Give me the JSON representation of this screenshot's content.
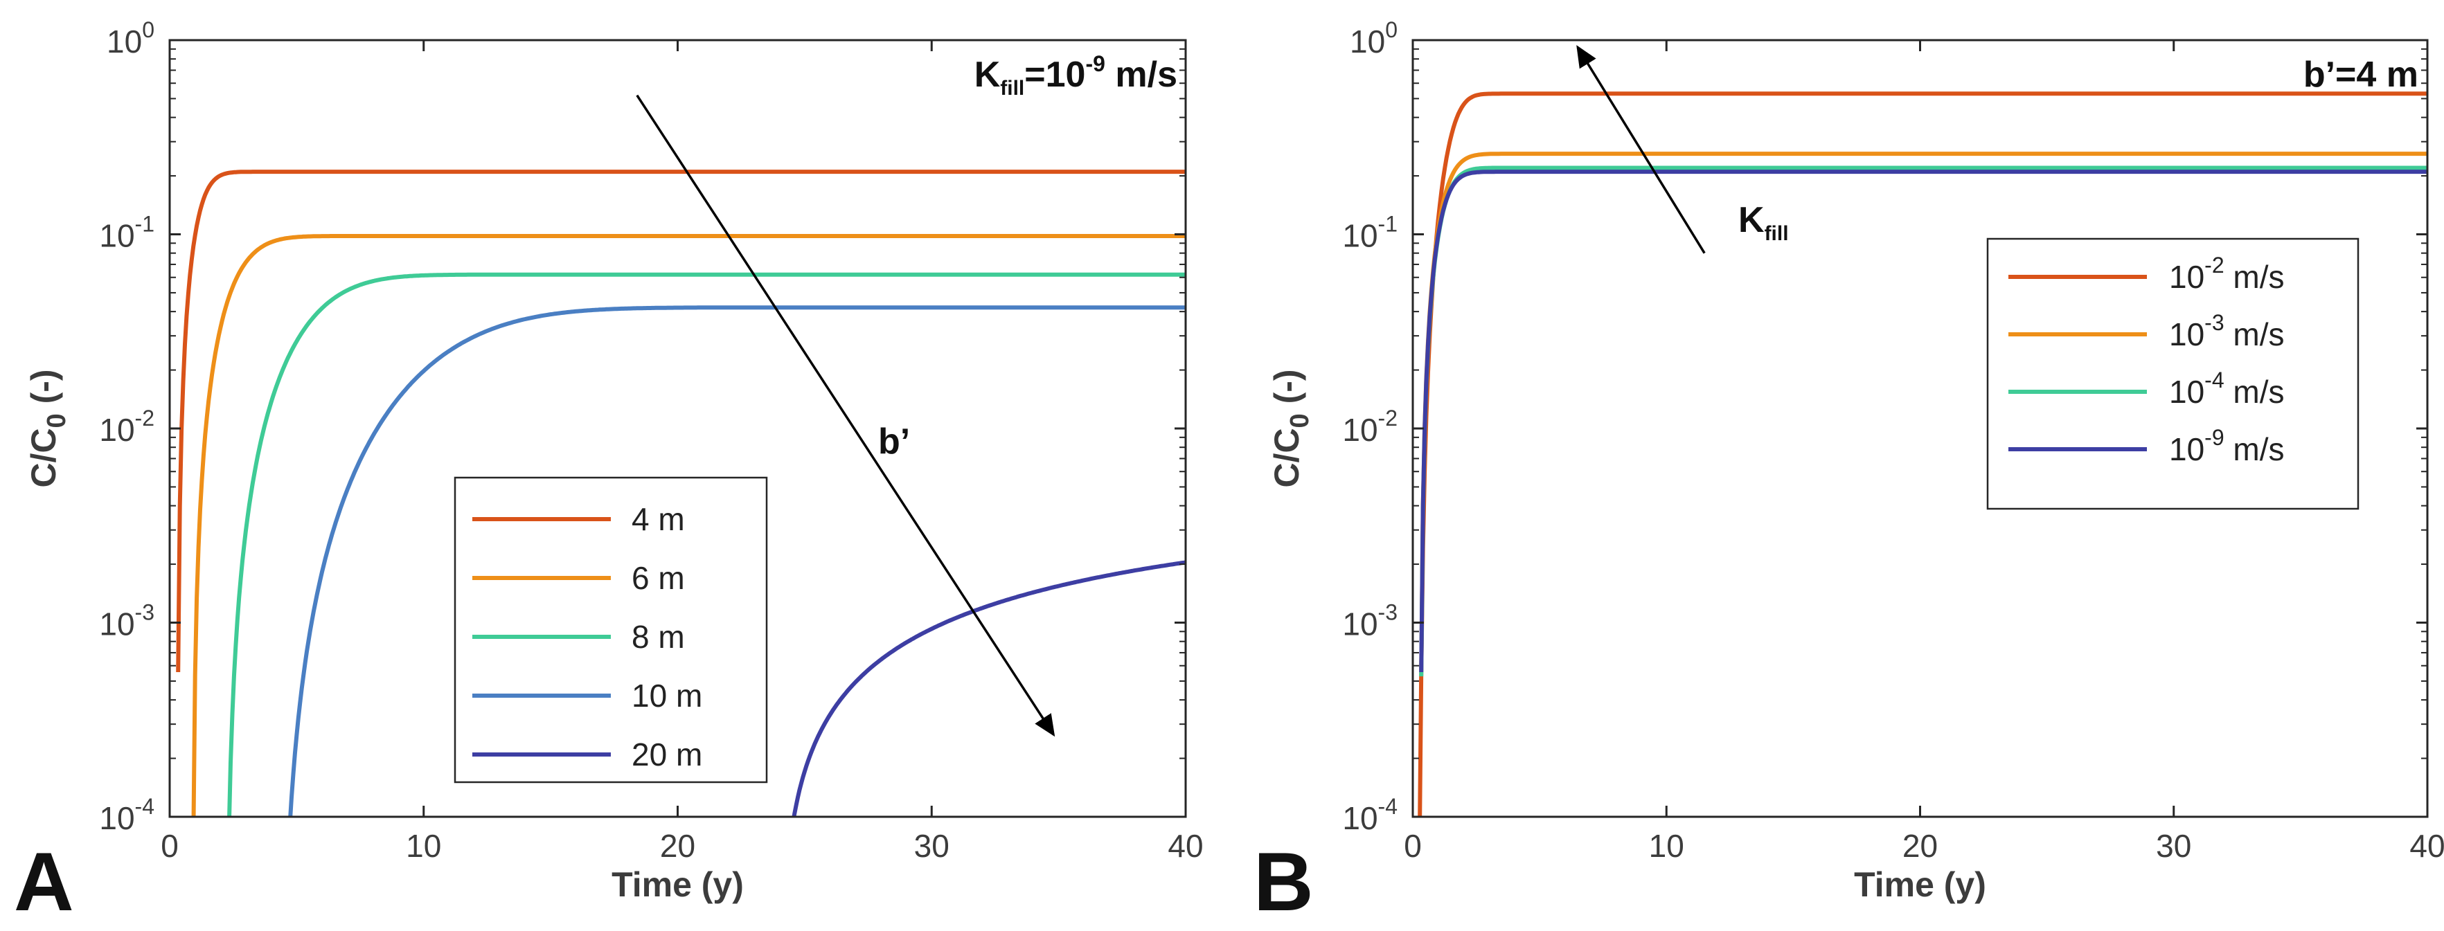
{
  "chart_data": [
    {
      "panel_label": "A",
      "type": "line",
      "x_scale": "linear",
      "y_scale": "log",
      "xlim": [
        0,
        40
      ],
      "ylim": [
        0.0001,
        1
      ],
      "xlabel": "Time (y)",
      "ylabel_main": "C/C",
      "ylabel_sub": "0",
      "ylabel_end": " (-)",
      "x_ticks": [
        0,
        10,
        20,
        30,
        40
      ],
      "x_tick_labels": [
        "0",
        "10",
        "20",
        "30",
        "40"
      ],
      "y_ticks": [
        0.0001,
        0.001,
        0.01,
        0.1,
        1
      ],
      "y_tick_labels": [
        {
          "base": "10",
          "exp": "-4"
        },
        {
          "base": "10",
          "exp": "-3"
        },
        {
          "base": "10",
          "exp": "-2"
        },
        {
          "base": "10",
          "exp": "-1"
        },
        {
          "base": "10",
          "exp": "0"
        }
      ],
      "annotation": {
        "pre": "K",
        "sub": "fill",
        "mid": "=10",
        "sup": "-9",
        "post": " m/s"
      },
      "arrow_label": "b’",
      "arrow": {
        "from": [
          18.4,
          0.52
        ],
        "to": [
          34.8,
          0.000265
        ]
      },
      "legend_position": "lower-center",
      "series": [
        {
          "name": "4 m",
          "color": "#d95319",
          "final": 0.21,
          "onset": 0.3,
          "tau": 0.9,
          "p": 1.8
        },
        {
          "name": "6 m",
          "color": "#ee8f18",
          "final": 0.098,
          "onset": 0.9,
          "tau": 1.8,
          "p": 1.8
        },
        {
          "name": "8 m",
          "color": "#3fcb96",
          "final": 0.062,
          "onset": 2.2,
          "tau": 3.6,
          "p": 2.0
        },
        {
          "name": "10 m",
          "color": "#4a7fc3",
          "final": 0.042,
          "onset": 4.3,
          "tau": 7.0,
          "p": 2.2
        },
        {
          "name": "20 m",
          "color": "#3d3ea3",
          "final": 0.0042,
          "onset": 24.0,
          "tau": 24.0,
          "p": 1.0
        }
      ]
    },
    {
      "panel_label": "B",
      "type": "line",
      "x_scale": "linear",
      "y_scale": "log",
      "xlim": [
        0,
        40
      ],
      "ylim": [
        0.0001,
        1
      ],
      "xlabel": "Time (y)",
      "ylabel_main": "C/C",
      "ylabel_sub": "0",
      "ylabel_end": " (-)",
      "x_ticks": [
        0,
        10,
        20,
        30,
        40
      ],
      "x_tick_labels": [
        "0",
        "10",
        "20",
        "30",
        "40"
      ],
      "y_ticks": [
        0.0001,
        0.001,
        0.01,
        0.1,
        1
      ],
      "y_tick_labels": [
        {
          "base": "10",
          "exp": "-4"
        },
        {
          "base": "10",
          "exp": "-3"
        },
        {
          "base": "10",
          "exp": "-2"
        },
        {
          "base": "10",
          "exp": "-1"
        },
        {
          "base": "10",
          "exp": "0"
        }
      ],
      "annotation": {
        "pre": "b’=4 m",
        "sub": "",
        "mid": "",
        "sup": "",
        "post": ""
      },
      "arrow_label": "K",
      "arrow_label_sub": "fill",
      "arrow": {
        "from": [
          11.5,
          0.08
        ],
        "to": [
          6.5,
          0.92
        ]
      },
      "legend_position": "right",
      "series": [
        {
          "name_base": "10",
          "name_exp": "-2",
          "name_unit": " m/s",
          "color": "#d95319",
          "final": 0.53,
          "onset": 0.25,
          "tau": 1.3,
          "p": 2.5
        },
        {
          "name_base": "10",
          "name_exp": "-3",
          "name_unit": " m/s",
          "color": "#ee8f18",
          "final": 0.26,
          "onset": 0.3,
          "tau": 1.0,
          "p": 1.8
        },
        {
          "name_base": "10",
          "name_exp": "-4",
          "name_unit": " m/s",
          "color": "#3fcb96",
          "final": 0.22,
          "onset": 0.3,
          "tau": 0.95,
          "p": 1.8
        },
        {
          "name_base": "10",
          "name_exp": "-9",
          "name_unit": " m/s",
          "color": "#3d3ea3",
          "final": 0.21,
          "onset": 0.3,
          "tau": 0.9,
          "p": 1.8
        }
      ]
    }
  ]
}
